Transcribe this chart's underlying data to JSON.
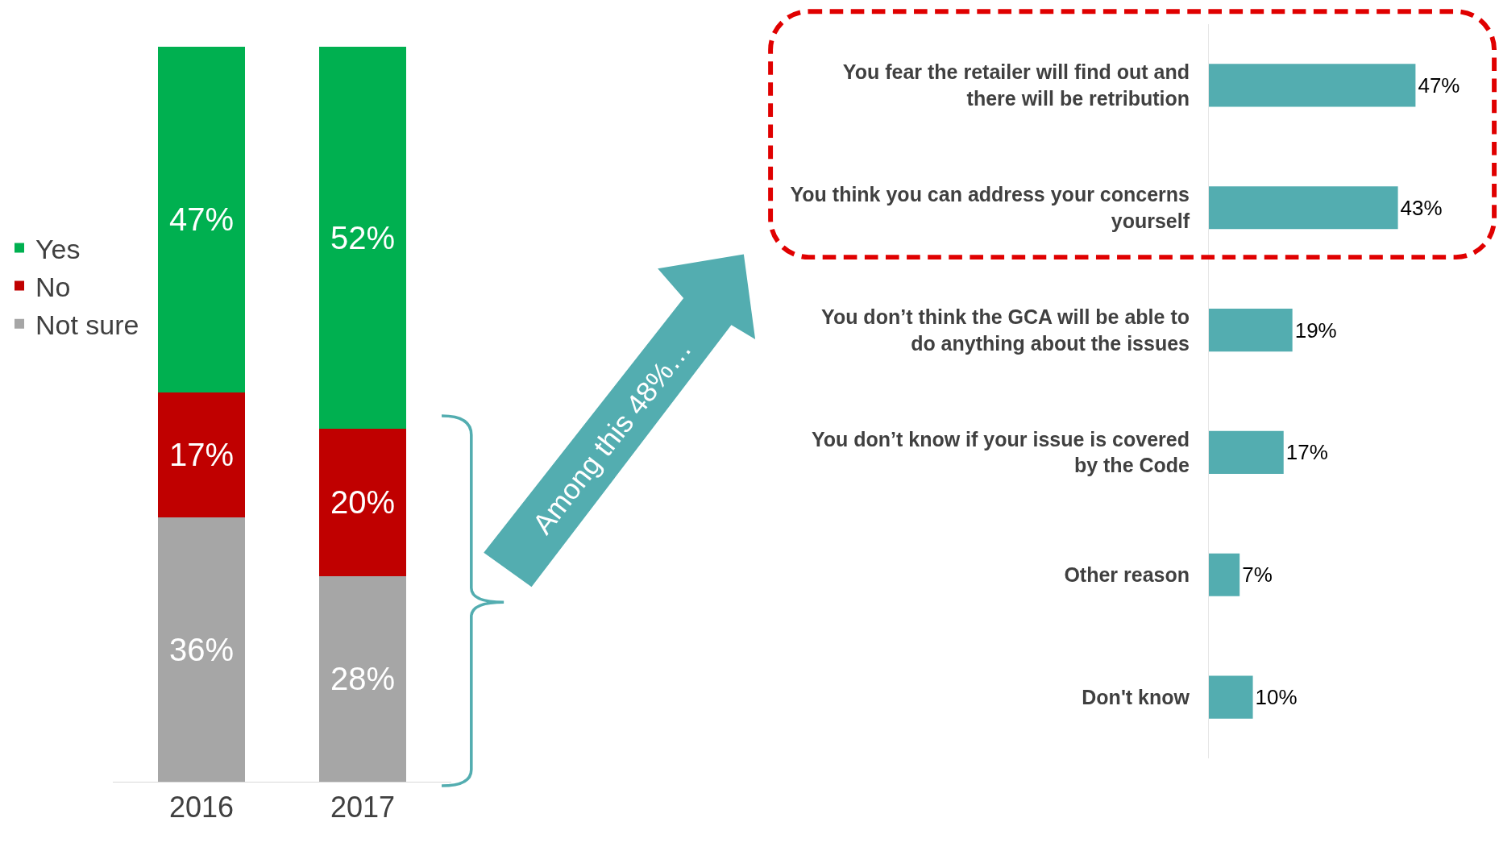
{
  "chart_data": [
    {
      "type": "bar",
      "stacked": true,
      "categories": [
        "2016",
        "2017"
      ],
      "legend": "left",
      "annotations": [
        "Among this 48%…"
      ],
      "series": [
        {
          "name": "Not sure",
          "color": "#a6a6a6",
          "values": [
            36,
            28
          ],
          "value_labels": [
            "36%",
            "28%"
          ]
        },
        {
          "name": "No",
          "color": "#c00000",
          "values": [
            17,
            20
          ],
          "value_labels": [
            "17%",
            "20%"
          ]
        },
        {
          "name": "Yes",
          "color": "#00b050",
          "values": [
            47,
            52
          ],
          "value_labels": [
            "47%",
            "52%"
          ]
        }
      ]
    },
    {
      "type": "bar",
      "orientation": "horizontal",
      "value_labels": [
        "47%",
        "43%",
        "19%",
        "17%",
        "7%",
        "10%"
      ],
      "categories": [
        "You fear the retailer will find out and there will be retribution",
        "You think you can address your concerns yourself",
        "You don’t think the GCA will be able to do anything about the issues",
        "You don’t know if your issue is covered by the Code",
        "Other reason",
        "Don't know"
      ],
      "values": [
        47,
        43,
        19,
        17,
        7,
        10
      ],
      "color": "#53adb0"
    }
  ]
}
